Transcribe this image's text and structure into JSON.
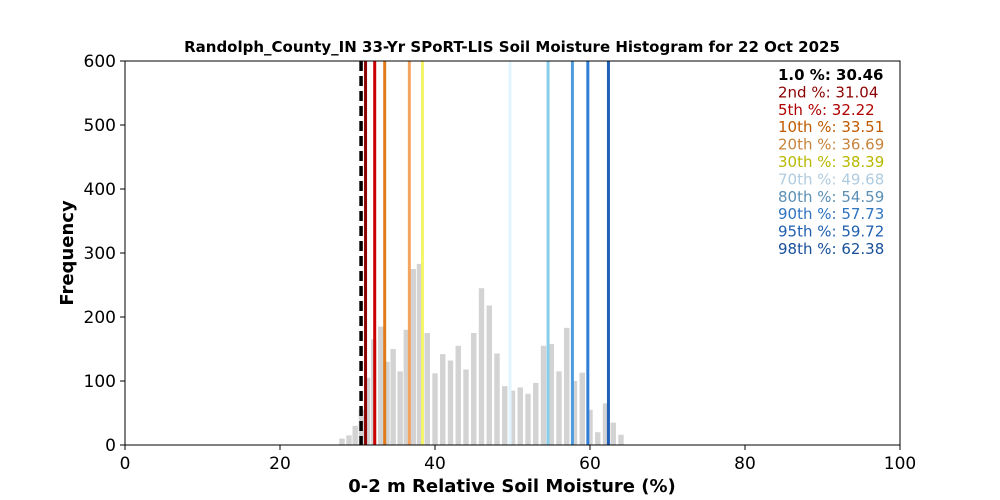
{
  "chart_data": {
    "type": "bar",
    "title": "Randolph_County_IN 33-Yr SPoRT-LIS Soil Moisture Histogram for 22 Oct 2025",
    "xlabel": "0-2 m Relative Soil Moisture (%)",
    "ylabel": "Frequency",
    "xlim": [
      0,
      100
    ],
    "ylim": [
      0,
      600
    ],
    "xticks": [
      0,
      20,
      40,
      60,
      80,
      100
    ],
    "yticks": [
      0,
      100,
      200,
      300,
      400,
      500,
      600
    ],
    "grid": false,
    "bar_color": "#d3d3d3",
    "bins": [
      {
        "x": 28.0,
        "count": 10
      },
      {
        "x": 28.9,
        "count": 15
      },
      {
        "x": 29.7,
        "count": 30
      },
      {
        "x": 30.5,
        "count": 55
      },
      {
        "x": 31.3,
        "count": 105
      },
      {
        "x": 32.1,
        "count": 165
      },
      {
        "x": 33.0,
        "count": 185
      },
      {
        "x": 33.8,
        "count": 130
      },
      {
        "x": 34.6,
        "count": 150
      },
      {
        "x": 35.5,
        "count": 115
      },
      {
        "x": 36.3,
        "count": 180
      },
      {
        "x": 37.2,
        "count": 275
      },
      {
        "x": 38.0,
        "count": 283
      },
      {
        "x": 39.0,
        "count": 175
      },
      {
        "x": 40.0,
        "count": 112
      },
      {
        "x": 41.0,
        "count": 142
      },
      {
        "x": 42.0,
        "count": 132
      },
      {
        "x": 43.0,
        "count": 155
      },
      {
        "x": 44.0,
        "count": 118
      },
      {
        "x": 45.0,
        "count": 175
      },
      {
        "x": 46.0,
        "count": 245
      },
      {
        "x": 47.0,
        "count": 218
      },
      {
        "x": 48.0,
        "count": 143
      },
      {
        "x": 49.0,
        "count": 92
      },
      {
        "x": 50.0,
        "count": 85
      },
      {
        "x": 51.0,
        "count": 90
      },
      {
        "x": 52.0,
        "count": 80
      },
      {
        "x": 53.0,
        "count": 97
      },
      {
        "x": 54.0,
        "count": 155
      },
      {
        "x": 55.0,
        "count": 158
      },
      {
        "x": 56.0,
        "count": 115
      },
      {
        "x": 57.0,
        "count": 183
      },
      {
        "x": 58.0,
        "count": 100
      },
      {
        "x": 59.0,
        "count": 113
      },
      {
        "x": 60.0,
        "count": 55
      },
      {
        "x": 61.0,
        "count": 20
      },
      {
        "x": 62.0,
        "count": 65
      },
      {
        "x": 63.0,
        "count": 35
      },
      {
        "x": 64.0,
        "count": 16
      }
    ],
    "current_value": {
      "x": 30.46,
      "color": "#000000",
      "style": "dashed"
    },
    "percentile_lines": [
      {
        "label": "2nd %",
        "value": 31.04,
        "color": "#8b0000"
      },
      {
        "label": "5th %",
        "value": 32.22,
        "color": "#cc0000"
      },
      {
        "label": "10th %",
        "value": 33.51,
        "color": "#e07b1a"
      },
      {
        "label": "20th %",
        "value": 36.69,
        "color": "#f4a460"
      },
      {
        "label": "30th %",
        "value": 38.39,
        "color": "#f5f56a"
      },
      {
        "label": "70th %",
        "value": 49.68,
        "color": "#e0f4ff"
      },
      {
        "label": "80th %",
        "value": 54.59,
        "color": "#87ceeb"
      },
      {
        "label": "90th %",
        "value": 57.73,
        "color": "#4f9be0"
      },
      {
        "label": "95th %",
        "value": 59.72,
        "color": "#2f7fd8"
      },
      {
        "label": "98th %",
        "value": 62.38,
        "color": "#1e5fb8"
      }
    ],
    "legend_placement": "top-right",
    "legend": [
      {
        "text": "1.0 %: 30.46",
        "color": "#000000"
      },
      {
        "text": "2nd %: 31.04",
        "color": "#8b0000"
      },
      {
        "text": "5th %: 32.22",
        "color": "#b00000"
      },
      {
        "text": "10th %: 33.51",
        "color": "#c05a00"
      },
      {
        "text": "20th %: 36.69",
        "color": "#c8843c"
      },
      {
        "text": "30th %: 38.39",
        "color": "#b8b800"
      },
      {
        "text": "70th %: 49.68",
        "color": "#b0cce0"
      },
      {
        "text": "80th %: 54.59",
        "color": "#5b8fb5"
      },
      {
        "text": "90th %: 57.73",
        "color": "#2f74c0"
      },
      {
        "text": "95th %: 59.72",
        "color": "#1f5fb0"
      },
      {
        "text": "98th %: 62.38",
        "color": "#184f9a"
      }
    ]
  }
}
